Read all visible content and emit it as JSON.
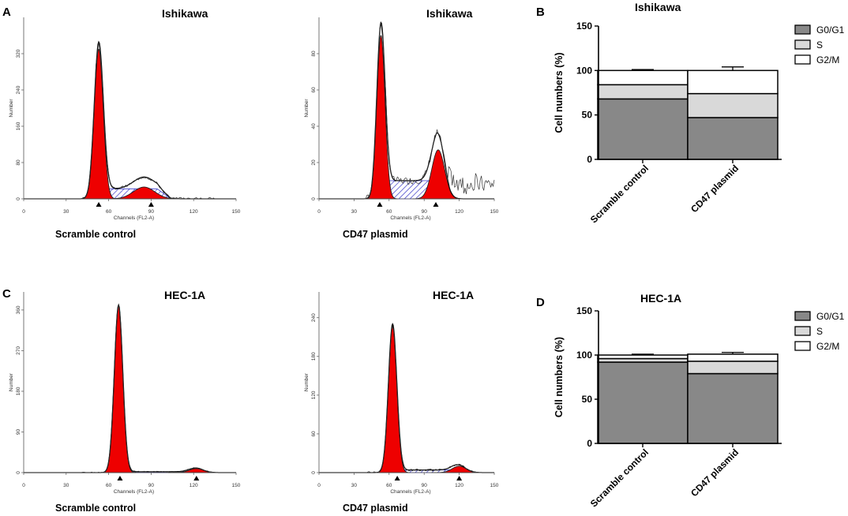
{
  "panels": [
    {
      "label": "A"
    },
    {
      "label": "B"
    },
    {
      "label": "C"
    },
    {
      "label": "D"
    }
  ],
  "colors": {
    "g1_peak": "#ee0000",
    "s_phase": "#3a3ac8",
    "bar_g0g1": "#888888",
    "bar_s": "#d9d9d9",
    "bar_g2m": "#ffffff"
  },
  "chart_data": [
    {
      "id": "hist-A1",
      "type": "histogram",
      "panel": "A",
      "title": "Ishikawa",
      "caption": "Scramble control",
      "xlabel": "Channels (FL2-A)",
      "ylabel": "Number",
      "xlim": [
        0,
        150
      ],
      "xticks": [
        0,
        30,
        60,
        90,
        120,
        150
      ],
      "ylim": [
        0,
        400
      ],
      "yticks": [
        0,
        80,
        160,
        240,
        320
      ],
      "g1": {
        "mu": 53,
        "sd": 3.2,
        "h": 330
      },
      "g2": {
        "mu": 85,
        "sd": 7.5,
        "h": 26
      },
      "s": {
        "a": 46,
        "b": 104,
        "h": 22
      },
      "markers": [
        53,
        90
      ],
      "noise": 6,
      "seed": 3
    },
    {
      "id": "hist-A2",
      "type": "histogram",
      "panel": "A",
      "title": "Ishikawa",
      "caption": "CD47 plasmid",
      "xlabel": "Channels (FL2-A)",
      "ylabel": "Number",
      "xlim": [
        0,
        150
      ],
      "xticks": [
        0,
        30,
        60,
        90,
        120,
        150
      ],
      "ylim": [
        0,
        100
      ],
      "yticks": [
        0,
        20,
        40,
        60,
        80
      ],
      "g1": {
        "mu": 53,
        "sd": 3.5,
        "h": 90
      },
      "g2": {
        "mu": 102,
        "sd": 5.5,
        "h": 27
      },
      "s": {
        "a": 45,
        "b": 112,
        "h": 10
      },
      "markers": [
        52,
        100
      ],
      "noise": 4,
      "seed": 7,
      "tail": true
    },
    {
      "id": "hist-C1",
      "type": "histogram",
      "panel": "C",
      "title": "HEC-1A",
      "caption": "Scramble control",
      "xlabel": "Channels (FL2-A)",
      "ylabel": "Number",
      "xlim": [
        0,
        150
      ],
      "xticks": [
        0,
        30,
        60,
        90,
        120,
        150
      ],
      "ylim": [
        0,
        400
      ],
      "yticks": [
        0,
        90,
        180,
        270,
        360
      ],
      "g1": {
        "mu": 67,
        "sd": 3.0,
        "h": 370
      },
      "g2": {
        "mu": 122,
        "sd": 5,
        "h": 9
      },
      "s": {
        "a": 60,
        "b": 128,
        "h": 2
      },
      "markers": [
        68,
        122
      ],
      "noise": 3,
      "seed": 11
    },
    {
      "id": "hist-C2",
      "type": "histogram",
      "panel": "C",
      "title": "HEC-1A",
      "caption": "CD47 plasmid",
      "xlabel": "Channels (FL2-A)",
      "ylabel": "Number",
      "xlim": [
        0,
        150
      ],
      "xticks": [
        0,
        30,
        60,
        90,
        120,
        150
      ],
      "ylim": [
        0,
        280
      ],
      "yticks": [
        0,
        60,
        120,
        180,
        240
      ],
      "g1": {
        "mu": 63,
        "sd": 3.6,
        "h": 228
      },
      "g2": {
        "mu": 120,
        "sd": 6,
        "h": 10
      },
      "s": {
        "a": 56,
        "b": 126,
        "h": 4
      },
      "markers": [
        67,
        120
      ],
      "noise": 3,
      "seed": 19
    },
    {
      "id": "bar-B",
      "type": "stacked_bar",
      "panel": "B",
      "title": "Ishikawa",
      "ylabel": "Cell numbers (%)",
      "ylim": [
        0,
        150
      ],
      "yticks": [
        0,
        50,
        100,
        150
      ],
      "categories": [
        "Scramble control",
        "CD47 plasmid"
      ],
      "series": [
        {
          "name": "G0/G1",
          "values": [
            68,
            47
          ],
          "errors": [
            1.5,
            2
          ]
        },
        {
          "name": "S",
          "values": [
            16,
            27
          ],
          "errors": [
            1,
            2
          ]
        },
        {
          "name": "G2/M",
          "values": [
            16,
            26
          ],
          "errors": [
            1,
            4
          ]
        }
      ]
    },
    {
      "id": "bar-D",
      "type": "stacked_bar",
      "panel": "D",
      "title": "HEC-1A",
      "ylabel": "Cell numbers (%)",
      "ylim": [
        0,
        150
      ],
      "yticks": [
        0,
        50,
        100,
        150
      ],
      "categories": [
        "Scramble control",
        "CD47 plasmid"
      ],
      "series": [
        {
          "name": "G0/G1",
          "values": [
            92,
            79
          ],
          "errors": [
            1,
            2
          ]
        },
        {
          "name": "S",
          "values": [
            4,
            14
          ],
          "errors": [
            1,
            1
          ]
        },
        {
          "name": "G2/M",
          "values": [
            4,
            8
          ],
          "errors": [
            1,
            2
          ]
        }
      ]
    }
  ]
}
